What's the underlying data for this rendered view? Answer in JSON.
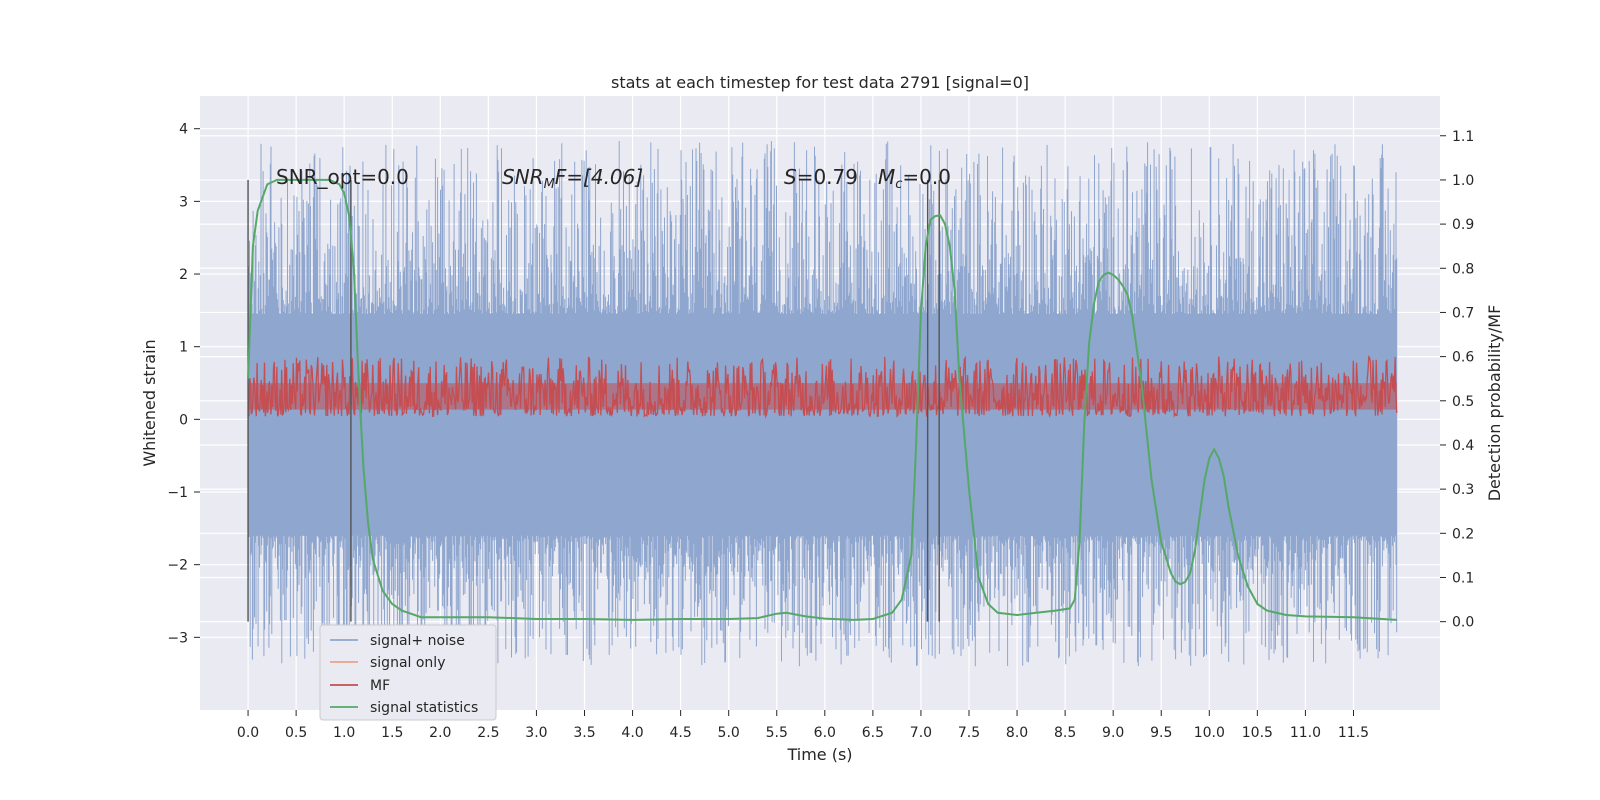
{
  "chart_data": {
    "type": "line",
    "title": "stats at each timestep for test data 2791 [signal=0]",
    "xlabel": "Time (s)",
    "ylabel_left": "Whitened strain",
    "ylabel_right": "Detection probability/MF",
    "xlim": [
      -0.5,
      12.4
    ],
    "ylim_left": [
      -4,
      4.45
    ],
    "ylim_right": [
      -0.2,
      1.19
    ],
    "x_ticks": [
      "0.0",
      "0.5",
      "1.0",
      "1.5",
      "2.0",
      "2.5",
      "3.0",
      "3.5",
      "4.0",
      "4.5",
      "5.0",
      "5.5",
      "6.0",
      "6.5",
      "7.0",
      "7.5",
      "8.0",
      "8.5",
      "9.0",
      "9.5",
      "10.0",
      "10.5",
      "11.0",
      "11.5"
    ],
    "y_left_ticks": [
      "4",
      "3",
      "2",
      "1",
      "0",
      "−1",
      "−2",
      "−3"
    ],
    "y_right_ticks": [
      "1.1",
      "1.0",
      "0.9",
      "0.8",
      "0.7",
      "0.6",
      "0.5",
      "0.4",
      "0.3",
      "0.2",
      "0.1",
      "0.0"
    ],
    "annotations": {
      "snr_opt": "SNR_opt=0.0",
      "snr_mf_main": "SNR",
      "snr_mf_sub": "M",
      "snr_mf_rest": "F=[4.06]",
      "s_label": "S",
      "s_value": "=0.79",
      "mc_main": "M",
      "mc_sub": "c",
      "mc_value": "=0.0"
    },
    "vertical_lines_x": [
      0.0,
      1.07,
      7.07,
      7.19
    ],
    "series": [
      {
        "name": "signal+ noise",
        "color": "#8fa6cf",
        "envelope_left": {
          "core": [
            -1.6,
            1.45
          ],
          "extremes": [
            -3.6,
            4.1
          ]
        }
      },
      {
        "name": "signal only",
        "color": "#e8a487",
        "values_left": [
          0
        ]
      },
      {
        "name": "MF",
        "color": "#c44e52",
        "band_right": [
          0.465,
          0.6
        ]
      },
      {
        "name": "signal statistics",
        "color": "#55a868",
        "x": [
          0.0,
          0.05,
          0.1,
          0.2,
          0.3,
          0.5,
          0.7,
          0.85,
          0.95,
          1.0,
          1.05,
          1.1,
          1.15,
          1.2,
          1.25,
          1.3,
          1.4,
          1.5,
          1.6,
          1.8,
          2.0,
          2.5,
          3.0,
          3.5,
          4.0,
          4.5,
          5.0,
          5.3,
          5.5,
          5.6,
          5.8,
          6.0,
          6.3,
          6.5,
          6.7,
          6.8,
          6.9,
          6.95,
          7.0,
          7.05,
          7.1,
          7.15,
          7.2,
          7.25,
          7.3,
          7.35,
          7.4,
          7.5,
          7.6,
          7.7,
          7.8,
          8.0,
          8.2,
          8.4,
          8.55,
          8.6,
          8.65,
          8.7,
          8.75,
          8.8,
          8.85,
          8.9,
          8.95,
          9.0,
          9.05,
          9.1,
          9.15,
          9.2,
          9.3,
          9.4,
          9.5,
          9.6,
          9.65,
          9.7,
          9.75,
          9.8,
          9.85,
          9.9,
          9.95,
          10.0,
          10.05,
          10.1,
          10.15,
          10.2,
          10.3,
          10.4,
          10.5,
          10.6,
          10.8,
          11.0,
          11.5,
          11.95
        ],
        "values": [
          0.55,
          0.85,
          0.93,
          0.99,
          1.0,
          1.0,
          1.0,
          1.0,
          0.99,
          0.97,
          0.92,
          0.8,
          0.55,
          0.35,
          0.22,
          0.14,
          0.07,
          0.04,
          0.025,
          0.01,
          0.01,
          0.01,
          0.006,
          0.006,
          0.004,
          0.006,
          0.006,
          0.008,
          0.018,
          0.02,
          0.012,
          0.007,
          0.004,
          0.006,
          0.02,
          0.05,
          0.15,
          0.4,
          0.7,
          0.85,
          0.91,
          0.918,
          0.92,
          0.9,
          0.85,
          0.75,
          0.55,
          0.3,
          0.1,
          0.04,
          0.02,
          0.015,
          0.02,
          0.025,
          0.03,
          0.05,
          0.18,
          0.45,
          0.63,
          0.72,
          0.77,
          0.785,
          0.79,
          0.785,
          0.775,
          0.76,
          0.74,
          0.69,
          0.53,
          0.32,
          0.18,
          0.11,
          0.09,
          0.085,
          0.09,
          0.11,
          0.16,
          0.24,
          0.32,
          0.37,
          0.39,
          0.37,
          0.33,
          0.26,
          0.15,
          0.08,
          0.04,
          0.025,
          0.015,
          0.012,
          0.01,
          0.004
        ]
      }
    ],
    "grid": true,
    "legend_position": "lower-left"
  }
}
